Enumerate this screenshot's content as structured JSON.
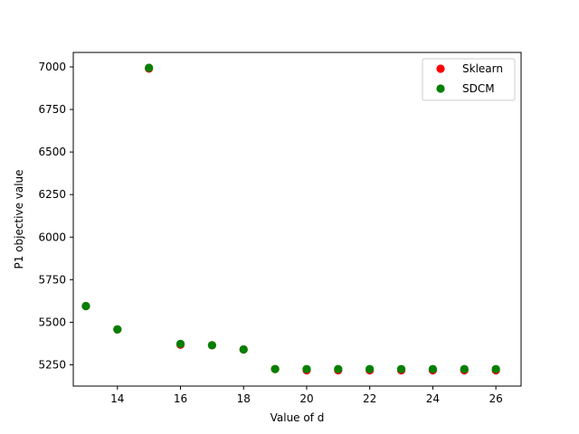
{
  "chart_data": {
    "type": "scatter",
    "title": "",
    "xlabel": "Value of d",
    "ylabel": "P1 objective value",
    "xlim": [
      12.6,
      26.8
    ],
    "ylim": [
      5125,
      7085
    ],
    "xticks": [
      14,
      16,
      18,
      20,
      22,
      24,
      26
    ],
    "yticks": [
      5250,
      5500,
      5750,
      6000,
      6250,
      6500,
      6750,
      7000
    ],
    "grid": false,
    "legend_position": "top-right",
    "x": [
      13,
      14,
      15,
      16,
      17,
      18,
      19,
      20,
      21,
      22,
      23,
      24,
      25,
      26
    ],
    "series": [
      {
        "name": "Sklearn",
        "color": "#ff0000",
        "values": [
          5595,
          5458,
          6990,
          5368,
          5365,
          5340,
          5225,
          5218,
          5218,
          5218,
          5218,
          5218,
          5218,
          5218
        ]
      },
      {
        "name": "SDCM",
        "color": "#008000",
        "values": [
          5595,
          5458,
          6995,
          5373,
          5365,
          5340,
          5225,
          5225,
          5225,
          5225,
          5225,
          5225,
          5225,
          5225
        ]
      }
    ]
  }
}
